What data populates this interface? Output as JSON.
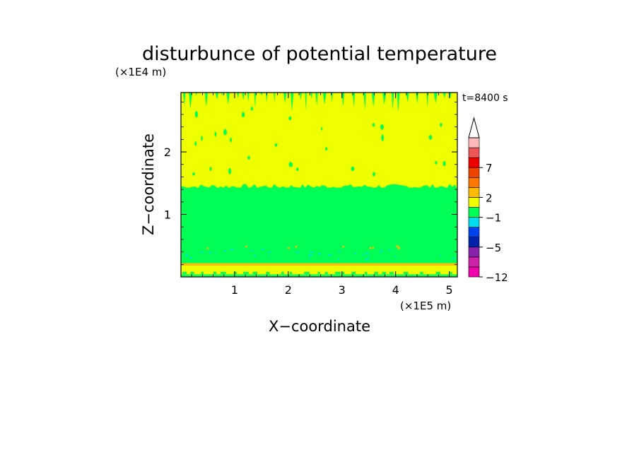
{
  "chart_data": {
    "type": "heatmap",
    "title": "disturbunce of potential temperature",
    "xlabel": "X−coordinate",
    "ylabel": "Z−coordinate",
    "x_unit": "(×1E5 m)",
    "y_unit": "(×1E4 m)",
    "time_label": "t=8400 s",
    "xlim": [
      0,
      5.15
    ],
    "ylim": [
      0,
      2.95
    ],
    "x_ticks": [
      1,
      2,
      3,
      4,
      5
    ],
    "y_ticks": [
      1,
      2
    ],
    "x_tick_labels": [
      "1",
      "2",
      "3",
      "4",
      "5"
    ],
    "y_tick_labels": [
      "1",
      "2"
    ],
    "layers": [
      {
        "z0": 0.0,
        "z1": 0.04,
        "level": "green"
      },
      {
        "z0": 0.04,
        "z1": 0.18,
        "level": "yellow"
      },
      {
        "z0": 0.18,
        "z1": 0.22,
        "level": "orange"
      },
      {
        "z0": 0.22,
        "z1": 1.43,
        "level": "green"
      },
      {
        "z0": 1.43,
        "z1": 2.95,
        "level": "yellow"
      }
    ],
    "colorbar": {
      "extend": "max",
      "colors": [
        "#ee00aa",
        "#cc22aa",
        "#8822aa",
        "#0022aa",
        "#0044ee",
        "#00ddee",
        "#00ff55",
        "#eeff00",
        "#ffbb00",
        "#ff7700",
        "#ee4400",
        "#ee0000",
        "#ee5555",
        "#ffbbbb"
      ],
      "labels": [
        {
          "index": 0,
          "text": "−12"
        },
        {
          "index": 3,
          "text": "−5"
        },
        {
          "index": 6,
          "text": "−1"
        },
        {
          "index": 8,
          "text": "2"
        },
        {
          "index": 11,
          "text": "7"
        }
      ]
    },
    "level_colors": {
      "green": "#00ff55",
      "yellow": "#eeff00",
      "orange": "#ffbb00",
      "cyan": "#00ddee"
    }
  }
}
